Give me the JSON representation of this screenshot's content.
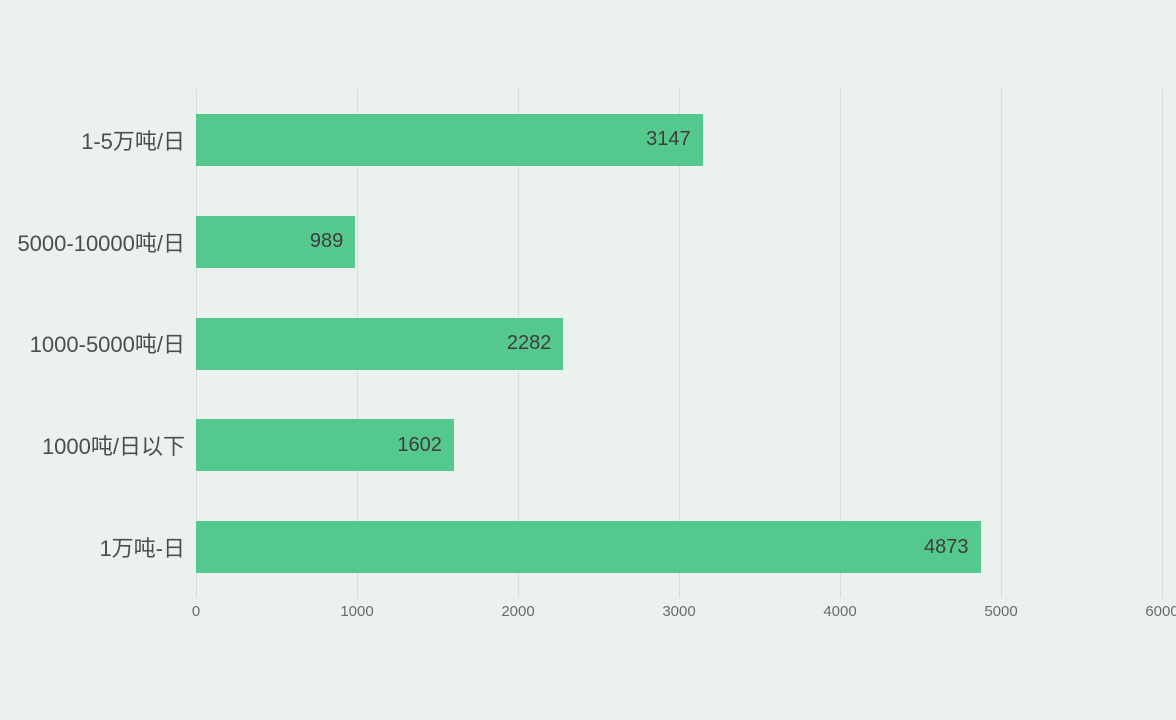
{
  "colors": {
    "background": "#ebf2ee",
    "bar": "#55c98d",
    "gridline": "#d8ddd9",
    "category_label": "#4d4d4d",
    "value_label": "#3d3d3d",
    "tick_label": "#6b6b6b"
  },
  "chart_data": {
    "type": "bar",
    "orientation": "horizontal",
    "categories": [
      "1-5万吨/日",
      "5000-10000吨/日",
      "1000-5000吨/日",
      "1000吨/日以下",
      "1万吨-日"
    ],
    "values": [
      3147,
      989,
      2282,
      1602,
      4873
    ],
    "xlim": [
      0,
      6000
    ],
    "xticks": [
      0,
      1000,
      2000,
      3000,
      4000,
      5000,
      6000
    ],
    "grid": "vertical-gridlines",
    "legend": "none",
    "value_label_position": "inside-end"
  }
}
